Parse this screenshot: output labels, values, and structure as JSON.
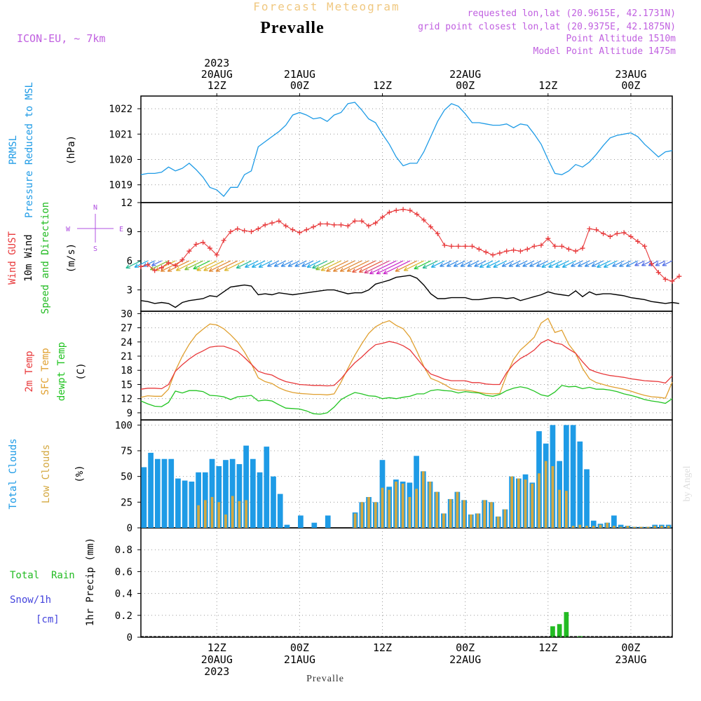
{
  "header": {
    "title": "Forecast Meteogram",
    "place": "Prevalle",
    "model": "ICON-EU, ~ 7km",
    "requested": "requested lon,lat (20.9615E, 42.1731N)",
    "grid_point": "grid point closest lon,lat (20.9375E, 42.1875N)",
    "point_altitude": "Point Altitude 1510m",
    "model_altitude": "Model Point Altitude 1475m"
  },
  "footer": {
    "place": "Prevalle",
    "credit": "by Angel"
  },
  "colors": {
    "pressure": "#1e9be6",
    "gust": "#e8383a",
    "wind": "#000000",
    "direction": "#22bb22",
    "temp": "#e8383a",
    "sfc": "#e0a030",
    "dewpt": "#22c422",
    "total_cloud": "#1e9be6",
    "low_cloud": "#d4a840",
    "rain": "#22bb22",
    "snow": "#4444dd",
    "compass": "#b050e0",
    "header": "#c060e0",
    "title": "#f0c880"
  },
  "chart_data": [
    {
      "type": "line",
      "panel": "pressure",
      "x_axis": {
        "top_labels": [
          {
            "lines": [
              "2023",
              "20AUG",
              "12Z"
            ]
          },
          {
            "lines": [
              "21AUG",
              "00Z"
            ]
          },
          {
            "lines": [
              "12Z"
            ]
          },
          {
            "lines": [
              "22AUG",
              "00Z"
            ]
          },
          {
            "lines": [
              "12Z"
            ]
          },
          {
            "lines": [
              "23AUG",
              "00Z"
            ]
          }
        ],
        "bottom_labels": [
          {
            "lines": [
              "12Z",
              "20AUG",
              "2023"
            ]
          },
          {
            "lines": [
              "00Z",
              "21AUG"
            ]
          },
          {
            "lines": [
              "12Z"
            ]
          },
          {
            "lines": [
              "00Z",
              "22AUG"
            ]
          },
          {
            "lines": [
              "12Z"
            ]
          },
          {
            "lines": [
              "00Z",
              "23AUG"
            ]
          }
        ],
        "hour_range": [
          0,
          77
        ],
        "tick_hours": [
          11,
          23,
          35,
          47,
          59,
          71
        ]
      },
      "ylabels": [
        "PRMSL",
        "Pressure Reduced to MSL",
        "(hPa)"
      ],
      "yticks": [
        "1019",
        "1020",
        "1021",
        "1022"
      ],
      "ylim": [
        1018.3,
        1022.5
      ],
      "series": [
        {
          "values": [
            1019.4,
            1019.45,
            1019.45,
            1019.5,
            1019.7,
            1019.55,
            1019.65,
            1019.85,
            1019.6,
            1019.3,
            1018.9,
            1018.8,
            1018.55,
            1018.9,
            1018.9,
            1019.4,
            1019.55,
            1020.5,
            1020.7,
            1020.9,
            1021.1,
            1021.35,
            1021.75,
            1021.85,
            1021.75,
            1021.6,
            1021.65,
            1021.5,
            1021.75,
            1021.85,
            1022.2,
            1022.25,
            1021.95,
            1021.6,
            1021.45,
            1021.0,
            1020.6,
            1020.1,
            1019.75,
            1019.85,
            1019.85,
            1020.3,
            1020.9,
            1021.5,
            1021.95,
            1022.2,
            1022.1,
            1021.8,
            1021.45,
            1021.45,
            1021.4,
            1021.35,
            1021.35,
            1021.4,
            1021.25,
            1021.4,
            1021.35,
            1021.0,
            1020.6,
            1020.0,
            1019.45,
            1019.4,
            1019.55,
            1019.8,
            1019.7,
            1019.9,
            1020.2,
            1020.55,
            1020.85,
            1020.95,
            1021.0,
            1021.05,
            1020.9,
            1020.6,
            1020.35,
            1020.1,
            1020.3,
            1020.35
          ]
        }
      ]
    },
    {
      "type": "line",
      "panel": "wind",
      "ylabels": [
        "Wind GUST",
        "10m Wind",
        "Speed and Direction",
        "(m/s)"
      ],
      "yticks": [
        "3",
        "6",
        "9",
        "12"
      ],
      "ylim": [
        0.8,
        12
      ],
      "compass": {
        "n": "N",
        "e": "E",
        "s": "S",
        "w": "W"
      },
      "series": [
        {
          "name": "Wind GUST",
          "values": [
            5.4,
            5.6,
            5.0,
            5.3,
            5.8,
            5.5,
            6.1,
            7.0,
            7.7,
            7.9,
            7.3,
            6.6,
            8.1,
            9.0,
            9.3,
            9.1,
            9.0,
            9.3,
            9.7,
            9.9,
            10.1,
            9.6,
            9.2,
            8.9,
            9.2,
            9.5,
            9.8,
            9.8,
            9.7,
            9.7,
            9.6,
            10.1,
            10.1,
            9.6,
            9.9,
            10.5,
            11.0,
            11.2,
            11.3,
            11.2,
            10.8,
            10.2,
            9.5,
            8.8,
            7.6,
            7.5,
            7.5,
            7.5,
            7.5,
            7.2,
            6.9,
            6.6,
            6.8,
            7.0,
            7.1,
            7.0,
            7.2,
            7.5,
            7.6,
            8.3,
            7.5,
            7.5,
            7.2,
            7.0,
            7.3,
            9.3,
            9.2,
            8.8,
            8.5,
            8.8,
            8.9,
            8.5,
            8.0,
            7.5,
            5.7,
            4.8,
            4.1,
            3.9,
            4.4
          ]
        },
        {
          "name": "10m Wind",
          "values": [
            1.9,
            1.8,
            1.6,
            1.7,
            1.6,
            1.2,
            1.7,
            1.9,
            2.0,
            2.1,
            2.4,
            2.3,
            2.8,
            3.3,
            3.4,
            3.5,
            3.4,
            2.5,
            2.6,
            2.5,
            2.7,
            2.6,
            2.5,
            2.6,
            2.7,
            2.8,
            2.9,
            3.0,
            3.0,
            2.8,
            2.6,
            2.7,
            2.7,
            3.0,
            3.6,
            3.8,
            4.0,
            4.3,
            4.4,
            4.5,
            4.2,
            3.5,
            2.6,
            2.1,
            2.1,
            2.2,
            2.2,
            2.2,
            2.0,
            2.0,
            2.1,
            2.2,
            2.2,
            2.1,
            2.2,
            1.9,
            2.1,
            2.3,
            2.5,
            2.8,
            2.6,
            2.5,
            2.4,
            2.9,
            2.3,
            2.8,
            2.5,
            2.6,
            2.6,
            2.5,
            2.4,
            2.2,
            2.1,
            2.0,
            1.8,
            1.7,
            1.6,
            1.7,
            1.6
          ]
        }
      ],
      "direction_speeds": [
        5,
        4,
        3,
        2,
        7,
        8,
        9,
        9,
        8,
        7,
        6,
        8,
        8,
        9,
        9,
        8,
        5,
        4,
        4,
        4,
        3,
        3,
        3,
        3,
        3,
        3,
        4,
        5,
        7,
        8,
        9,
        9,
        9,
        9,
        10,
        10,
        11,
        12,
        12,
        12,
        9,
        8,
        6,
        5,
        4,
        3,
        3,
        3,
        3,
        3,
        3,
        4,
        4,
        4,
        3,
        3,
        3,
        3,
        3,
        3,
        4,
        4,
        4,
        4,
        3,
        3,
        3,
        3,
        4,
        4,
        3,
        3,
        3,
        2,
        2,
        2,
        2,
        2
      ]
    },
    {
      "type": "line",
      "panel": "temperature",
      "ylabels": [
        "2m Temp",
        "SFC Temp",
        "dewpt Temp",
        "(C)"
      ],
      "yticks": [
        "9",
        "12",
        "15",
        "18",
        "21",
        "24",
        "27",
        "30"
      ],
      "ylim": [
        7.5,
        30.5
      ],
      "series": [
        {
          "name": "2m Temp",
          "values": [
            14.0,
            14.2,
            14.2,
            14.1,
            15.0,
            17.8,
            19.2,
            20.4,
            21.4,
            22.1,
            22.9,
            23.1,
            23.1,
            22.6,
            22.0,
            20.7,
            19.3,
            17.8,
            17.3,
            17.0,
            16.2,
            15.6,
            15.3,
            15.0,
            14.9,
            14.8,
            14.8,
            14.7,
            14.8,
            16.2,
            18.0,
            19.6,
            20.8,
            22.2,
            23.4,
            23.7,
            24.1,
            23.8,
            23.2,
            22.3,
            20.5,
            18.7,
            17.2,
            16.7,
            16.1,
            15.8,
            15.8,
            15.8,
            15.4,
            15.4,
            15.1,
            15.0,
            15.0,
            17.5,
            19.3,
            20.5,
            21.3,
            22.3,
            23.8,
            24.5,
            23.8,
            23.5,
            22.5,
            21.6,
            19.8,
            18.2,
            17.6,
            17.2,
            16.9,
            16.7,
            16.5,
            16.2,
            16.0,
            15.8,
            15.7,
            15.6,
            15.3,
            16.8
          ]
        },
        {
          "name": "SFC Temp",
          "values": [
            12.3,
            12.6,
            12.5,
            12.5,
            14.0,
            17.9,
            21.0,
            23.5,
            25.5,
            26.7,
            27.8,
            27.6,
            26.8,
            25.5,
            24.0,
            21.9,
            19.4,
            16.4,
            15.6,
            15.2,
            14.3,
            13.7,
            13.3,
            13.1,
            13.0,
            12.9,
            12.9,
            12.8,
            13.0,
            15.5,
            18.4,
            21.2,
            23.6,
            25.8,
            27.2,
            28.0,
            28.5,
            27.5,
            26.8,
            25.0,
            22.0,
            18.8,
            16.3,
            15.7,
            15.0,
            14.1,
            13.8,
            13.8,
            13.6,
            13.3,
            13.1,
            13.0,
            13.1,
            17.0,
            20.3,
            22.3,
            23.6,
            25.0,
            28.0,
            29.0,
            26.0,
            26.5,
            23.5,
            21.6,
            18.4,
            16.2,
            15.4,
            15.0,
            14.6,
            14.3,
            14.0,
            13.6,
            13.1,
            12.7,
            12.4,
            12.3,
            12.1,
            15.5
          ]
        },
        {
          "name": "dewpt Temp",
          "values": [
            11.5,
            10.9,
            10.4,
            10.3,
            11.2,
            13.6,
            13.2,
            13.7,
            13.7,
            13.5,
            12.7,
            12.6,
            12.4,
            11.8,
            12.4,
            12.5,
            12.7,
            11.5,
            11.7,
            11.5,
            10.7,
            10.0,
            9.9,
            9.8,
            9.4,
            8.8,
            8.7,
            9.0,
            10.2,
            11.8,
            12.6,
            13.3,
            13.0,
            12.6,
            12.5,
            12.0,
            12.2,
            12.0,
            12.3,
            12.5,
            13.0,
            13.0,
            13.7,
            13.9,
            13.7,
            13.6,
            13.2,
            13.5,
            13.3,
            13.2,
            12.7,
            12.5,
            12.9,
            13.7,
            14.2,
            14.5,
            14.2,
            13.6,
            12.8,
            12.5,
            13.4,
            14.8,
            14.5,
            14.6,
            14.1,
            14.4,
            14.0,
            14.0,
            13.8,
            13.5,
            13.0,
            12.7,
            12.3,
            11.8,
            11.5,
            11.3,
            11.0,
            12.0
          ]
        }
      ]
    },
    {
      "type": "bar",
      "panel": "clouds",
      "ylabels": [
        "Total Clouds",
        "Low Clouds",
        "(%)"
      ],
      "yticks": [
        "0",
        "25",
        "50",
        "75",
        "100"
      ],
      "ylim": [
        0,
        105
      ],
      "series": [
        {
          "name": "Total Clouds",
          "values": [
            59,
            73,
            67,
            67,
            67,
            48,
            46,
            45,
            54,
            54,
            67,
            60,
            66,
            67,
            62,
            80,
            67,
            54,
            79,
            50,
            33,
            3,
            0,
            12,
            0,
            5,
            0,
            12,
            0,
            0,
            0,
            15,
            25,
            30,
            25,
            66,
            40,
            47,
            45,
            44,
            70,
            55,
            45,
            35,
            14,
            28,
            35,
            27,
            13,
            14,
            27,
            25,
            11,
            18,
            50,
            48,
            52,
            44,
            94,
            82,
            100,
            65,
            100,
            100,
            84,
            57,
            7,
            4,
            5,
            12,
            3,
            2,
            1,
            1,
            1,
            3,
            3,
            3
          ]
        },
        {
          "name": "Low Clouds",
          "values": [
            0,
            0,
            0,
            0,
            0,
            0,
            0,
            0,
            22,
            27,
            30,
            25,
            13,
            31,
            26,
            27,
            0,
            0,
            0,
            0,
            0,
            0,
            0,
            0,
            0,
            0,
            0,
            0,
            0,
            0,
            0,
            14,
            25,
            30,
            25,
            39,
            37,
            45,
            43,
            30,
            38,
            55,
            45,
            35,
            14,
            28,
            35,
            27,
            13,
            14,
            27,
            25,
            11,
            18,
            50,
            48,
            47,
            43,
            53,
            65,
            60,
            37,
            36,
            2,
            3,
            2,
            2,
            3,
            5,
            2,
            1,
            2,
            1,
            1,
            1,
            2,
            2,
            2
          ]
        }
      ]
    },
    {
      "type": "bar",
      "panel": "precipitation",
      "ylabels": [
        "Total  Rain",
        "Snow/1h",
        "[cm]",
        "1hr Precip (mm)"
      ],
      "yticks": [
        "0",
        "0.2",
        "0.4",
        "0.6",
        "0.8"
      ],
      "ylim": [
        0,
        1.0
      ],
      "series": [
        {
          "name": "Total  Rain",
          "values": [
            0,
            0,
            0,
            0,
            0,
            0,
            0,
            0,
            0,
            0,
            0,
            0,
            0,
            0,
            0,
            0,
            0,
            0,
            0,
            0,
            0,
            0,
            0,
            0,
            0,
            0,
            0,
            0,
            0,
            0,
            0,
            0,
            0,
            0,
            0,
            0,
            0,
            0,
            0,
            0,
            0,
            0,
            0,
            0,
            0,
            0,
            0,
            0,
            0,
            0,
            0,
            0,
            0,
            0,
            0,
            0,
            0,
            0,
            0,
            0,
            0.1,
            0.12,
            0.23,
            0,
            0.01,
            0,
            0,
            0,
            0,
            0,
            0,
            0,
            0,
            0,
            0,
            0,
            0,
            0
          ]
        }
      ]
    }
  ]
}
